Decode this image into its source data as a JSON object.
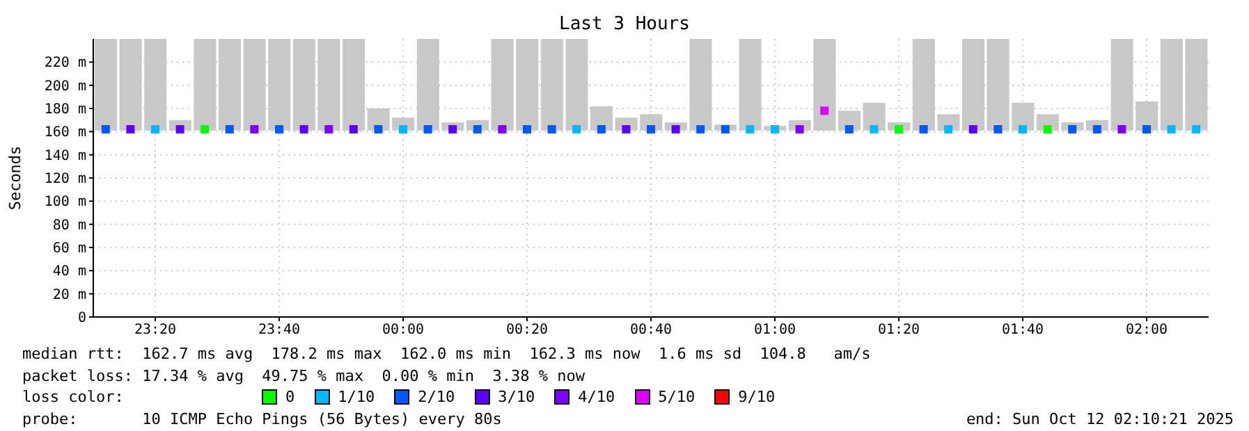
{
  "chart_data": {
    "type": "bar",
    "title": "Last 3 Hours",
    "ylabel": "Seconds",
    "legend_title": "loss color:",
    "legend": "bottom",
    "grid": true,
    "marker": "square",
    "x": [
      "2025-10-11T23:12",
      "2025-10-11T23:16",
      "2025-10-11T23:20",
      "2025-10-11T23:24",
      "2025-10-11T23:28",
      "2025-10-11T23:32",
      "2025-10-11T23:36",
      "2025-10-11T23:40",
      "2025-10-11T23:44",
      "2025-10-11T23:48",
      "2025-10-11T23:52",
      "2025-10-11T23:56",
      "2025-10-12T00:00",
      "2025-10-12T00:04",
      "2025-10-12T00:08",
      "2025-10-12T00:12",
      "2025-10-12T00:16",
      "2025-10-12T00:20",
      "2025-10-12T00:24",
      "2025-10-12T00:28",
      "2025-10-12T00:32",
      "2025-10-12T00:36",
      "2025-10-12T00:40",
      "2025-10-12T00:44",
      "2025-10-12T00:48",
      "2025-10-12T00:52",
      "2025-10-12T00:56",
      "2025-10-12T01:00",
      "2025-10-12T01:04",
      "2025-10-12T01:08",
      "2025-10-12T01:12",
      "2025-10-12T01:16",
      "2025-10-12T01:20",
      "2025-10-12T01:24",
      "2025-10-12T01:28",
      "2025-10-12T01:32",
      "2025-10-12T01:36",
      "2025-10-12T01:40",
      "2025-10-12T01:44",
      "2025-10-12T01:48",
      "2025-10-12T01:52",
      "2025-10-12T01:56",
      "2025-10-12T02:00",
      "2025-10-12T02:04",
      "2025-10-12T02:08"
    ],
    "xlim": [
      "2025-10-11T23:10",
      "2025-10-12T02:10"
    ],
    "xticks": [
      {
        "value": "2025-10-11T23:20",
        "label": "23:20"
      },
      {
        "value": "2025-10-11T23:40",
        "label": "23:40"
      },
      {
        "value": "2025-10-12T00:00",
        "label": "00:00"
      },
      {
        "value": "2025-10-12T00:20",
        "label": "00:20"
      },
      {
        "value": "2025-10-12T00:40",
        "label": "00:40"
      },
      {
        "value": "2025-10-12T01:00",
        "label": "01:00"
      },
      {
        "value": "2025-10-12T01:20",
        "label": "01:20"
      },
      {
        "value": "2025-10-12T01:40",
        "label": "01:40"
      },
      {
        "value": "2025-10-12T02:00",
        "label": "02:00"
      }
    ],
    "ylim": [
      0,
      240
    ],
    "yticks": [
      0,
      {
        "value": 20,
        "label": "20 m"
      },
      {
        "value": 40,
        "label": "40 m"
      },
      {
        "value": 60,
        "label": "60 m"
      },
      {
        "value": 80,
        "label": "80 m"
      },
      {
        "value": 100,
        "label": "100 m"
      },
      {
        "value": 120,
        "label": "120 m"
      },
      {
        "value": 140,
        "label": "140 m"
      },
      {
        "value": 160,
        "label": "160 m"
      },
      {
        "value": 180,
        "label": "180 m"
      },
      {
        "value": 200,
        "label": "200 m"
      },
      {
        "value": 220,
        "label": "220 m"
      }
    ],
    "series": [
      {
        "color": "#c8c8c8",
        "base": [
          161,
          161,
          161,
          161,
          161,
          161,
          161,
          161,
          161,
          161,
          161,
          161,
          161,
          161,
          161,
          161,
          161,
          161,
          161,
          161,
          161,
          161,
          161,
          161,
          161,
          161,
          161,
          161,
          161,
          161,
          161,
          161,
          161,
          161,
          161,
          161,
          161,
          161,
          161,
          161,
          161,
          161,
          161,
          161,
          161
        ],
        "values": [
          79,
          79,
          79,
          9,
          79,
          79,
          79,
          79,
          79,
          79,
          79,
          19,
          11,
          79,
          7,
          9,
          79,
          79,
          79,
          79,
          21,
          11,
          14,
          7,
          79,
          5,
          79,
          4,
          9,
          79,
          17,
          24,
          7,
          79,
          14,
          79,
          79,
          24,
          14,
          7,
          9,
          79,
          25,
          79,
          79
        ]
      },
      {
        "type": "scatter",
        "name": "0",
        "color": "#00ff00",
        "values": [
          null,
          null,
          null,
          null,
          162,
          null,
          null,
          null,
          null,
          null,
          null,
          null,
          null,
          null,
          null,
          null,
          null,
          null,
          null,
          null,
          null,
          null,
          null,
          null,
          null,
          null,
          null,
          null,
          null,
          null,
          null,
          null,
          162,
          null,
          null,
          null,
          null,
          null,
          162,
          null,
          null,
          null,
          null,
          null,
          null
        ]
      },
      {
        "type": "scatter",
        "name": "1/10",
        "color": "#00b8ff",
        "values": [
          null,
          null,
          162,
          null,
          null,
          null,
          null,
          null,
          null,
          null,
          null,
          null,
          162,
          null,
          null,
          null,
          null,
          null,
          null,
          162,
          null,
          null,
          null,
          null,
          null,
          null,
          162,
          162,
          null,
          null,
          null,
          162,
          null,
          null,
          162,
          null,
          null,
          162,
          null,
          null,
          null,
          null,
          null,
          162,
          162
        ]
      },
      {
        "type": "scatter",
        "name": "2/10",
        "color": "#0059ff",
        "values": [
          162,
          null,
          null,
          null,
          null,
          162,
          null,
          162,
          null,
          null,
          null,
          162,
          null,
          162,
          null,
          162,
          null,
          162,
          162,
          null,
          162,
          null,
          162,
          null,
          162,
          162,
          null,
          null,
          null,
          null,
          162,
          null,
          null,
          162,
          null,
          null,
          162,
          null,
          null,
          162,
          162,
          null,
          162,
          null,
          null
        ]
      },
      {
        "type": "scatter",
        "name": "3/10",
        "color": "#5e00ff",
        "values": [
          null,
          162,
          null,
          162,
          null,
          null,
          null,
          null,
          162,
          null,
          162,
          null,
          null,
          null,
          162,
          null,
          null,
          null,
          null,
          null,
          null,
          162,
          null,
          162,
          null,
          null,
          null,
          null,
          null,
          null,
          null,
          null,
          null,
          null,
          null,
          162,
          null,
          null,
          null,
          null,
          null,
          null,
          null,
          null,
          null
        ]
      },
      {
        "type": "scatter",
        "name": "4/10",
        "color": "#7e00ff",
        "values": [
          null,
          null,
          null,
          null,
          null,
          null,
          162,
          null,
          null,
          162,
          null,
          null,
          null,
          null,
          null,
          null,
          162,
          null,
          null,
          null,
          null,
          null,
          null,
          null,
          null,
          null,
          null,
          null,
          162,
          null,
          null,
          null,
          null,
          null,
          null,
          null,
          null,
          null,
          null,
          null,
          null,
          162,
          null,
          null,
          null
        ]
      },
      {
        "type": "scatter",
        "name": "5/10",
        "color": "#dd00ff",
        "values": [
          null,
          null,
          null,
          null,
          null,
          null,
          null,
          null,
          null,
          null,
          null,
          null,
          null,
          null,
          null,
          null,
          null,
          null,
          null,
          null,
          null,
          null,
          null,
          null,
          null,
          null,
          null,
          null,
          null,
          178,
          null,
          null,
          null,
          null,
          null,
          null,
          null,
          null,
          null,
          null,
          null,
          null,
          null,
          null,
          null
        ]
      },
      {
        "type": "scatter",
        "name": "9/10",
        "color": "#ff0000",
        "values": [
          null,
          null,
          null,
          null,
          null,
          null,
          null,
          null,
          null,
          null,
          null,
          null,
          null,
          null,
          null,
          null,
          null,
          null,
          null,
          null,
          null,
          null,
          null,
          null,
          null,
          null,
          null,
          null,
          null,
          null,
          null,
          null,
          null,
          null,
          null,
          null,
          null,
          null,
          null,
          null,
          null,
          null,
          null,
          null,
          null
        ]
      }
    ],
    "annotations": [
      "median rtt:  162.7 ms avg  178.2 ms max  162.0 ms min  162.3 ms now  1.6 ms sd  104.8   am/s",
      "packet loss: 17.34 % avg  49.75 % max  0.00 % min  3.38 % now",
      "probe:       10 ICMP Echo Pings (56 Bytes) every 80s",
      "end: Sun Oct 12 02:10:21 2025"
    ]
  }
}
